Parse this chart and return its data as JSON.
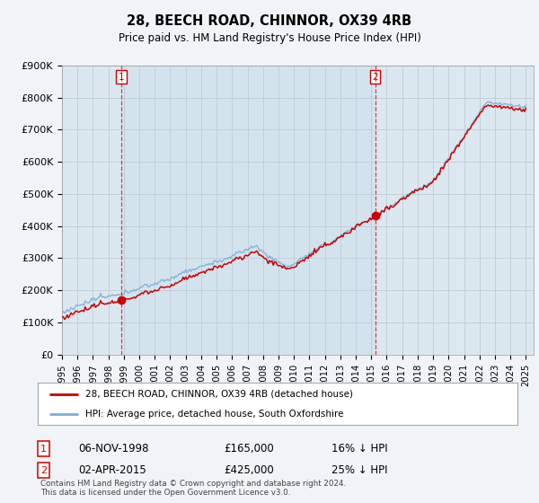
{
  "title": "28, BEECH ROAD, CHINNOR, OX39 4RB",
  "subtitle": "Price paid vs. HM Land Registry's House Price Index (HPI)",
  "ylim": [
    0,
    900000
  ],
  "yticks": [
    0,
    100000,
    200000,
    300000,
    400000,
    500000,
    600000,
    700000,
    800000,
    900000
  ],
  "ytick_labels": [
    "£0",
    "£100K",
    "£200K",
    "£300K",
    "£400K",
    "£500K",
    "£600K",
    "£700K",
    "£800K",
    "£900K"
  ],
  "legend_label_red": "28, BEECH ROAD, CHINNOR, OX39 4RB (detached house)",
  "legend_label_blue": "HPI: Average price, detached house, South Oxfordshire",
  "red_color": "#cc0000",
  "blue_color": "#7ab0d4",
  "marker1_date": 1998.84,
  "marker1_label": "1",
  "marker1_text": "06-NOV-1998",
  "marker1_price": "£165,000",
  "marker1_hpi": "16% ↓ HPI",
  "marker2_date": 2015.25,
  "marker2_label": "2",
  "marker2_text": "02-APR-2015",
  "marker2_price": "£425,000",
  "marker2_hpi": "25% ↓ HPI",
  "footer": "Contains HM Land Registry data © Crown copyright and database right 2024.\nThis data is licensed under the Open Government Licence v3.0.",
  "background_color": "#f0f4f8",
  "plot_background": "#dce8f0",
  "grid_color": "#c0ccd4"
}
